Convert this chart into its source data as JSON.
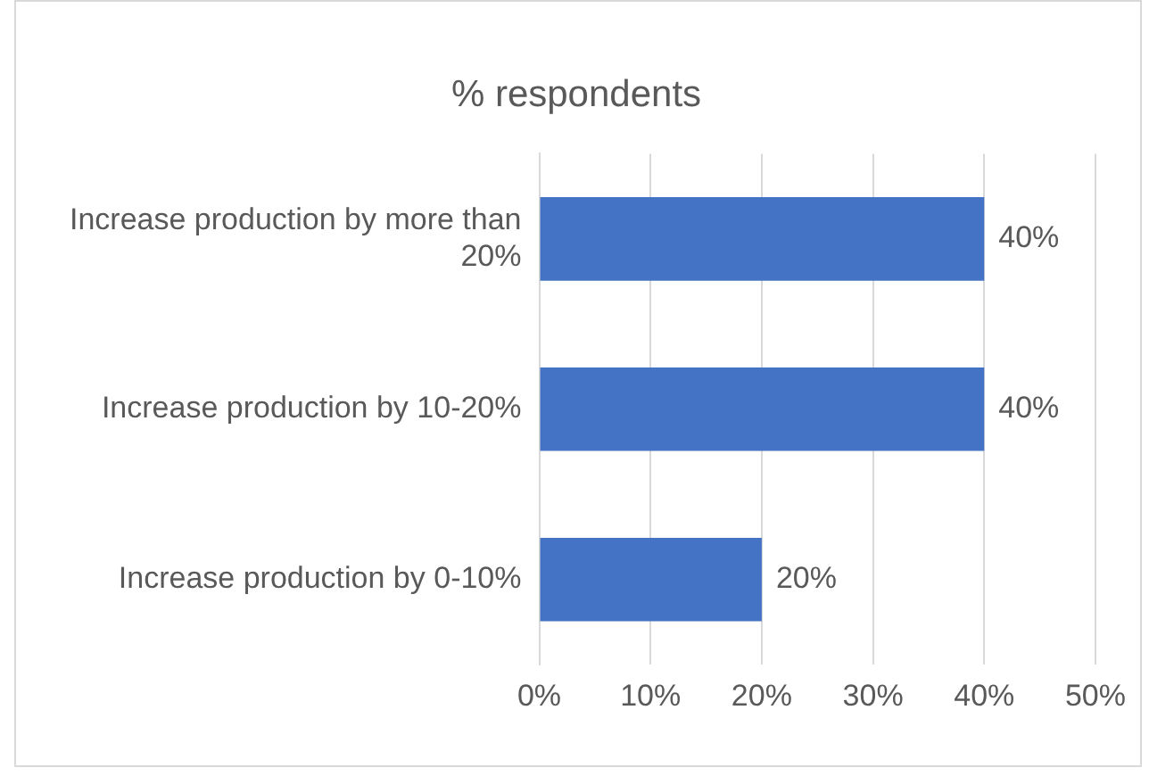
{
  "chart_data": {
    "type": "bar",
    "orientation": "horizontal",
    "title": "% respondents",
    "categories": [
      "Increase production by more than 20%",
      "Increase production by 10-20%",
      "Increase production by 0-10%"
    ],
    "values": [
      40,
      40,
      20
    ],
    "value_labels": [
      "40%",
      "40%",
      "20%"
    ],
    "color": "#4472c4",
    "xlim": [
      0,
      50
    ],
    "xticks": [
      {
        "value": 0,
        "label": "0%"
      },
      {
        "value": 10,
        "label": "10%"
      },
      {
        "value": 20,
        "label": "20%"
      },
      {
        "value": 30,
        "label": "30%"
      },
      {
        "value": 40,
        "label": "40%"
      },
      {
        "value": 50,
        "label": "50%"
      }
    ],
    "grid": "x",
    "legend": false
  }
}
